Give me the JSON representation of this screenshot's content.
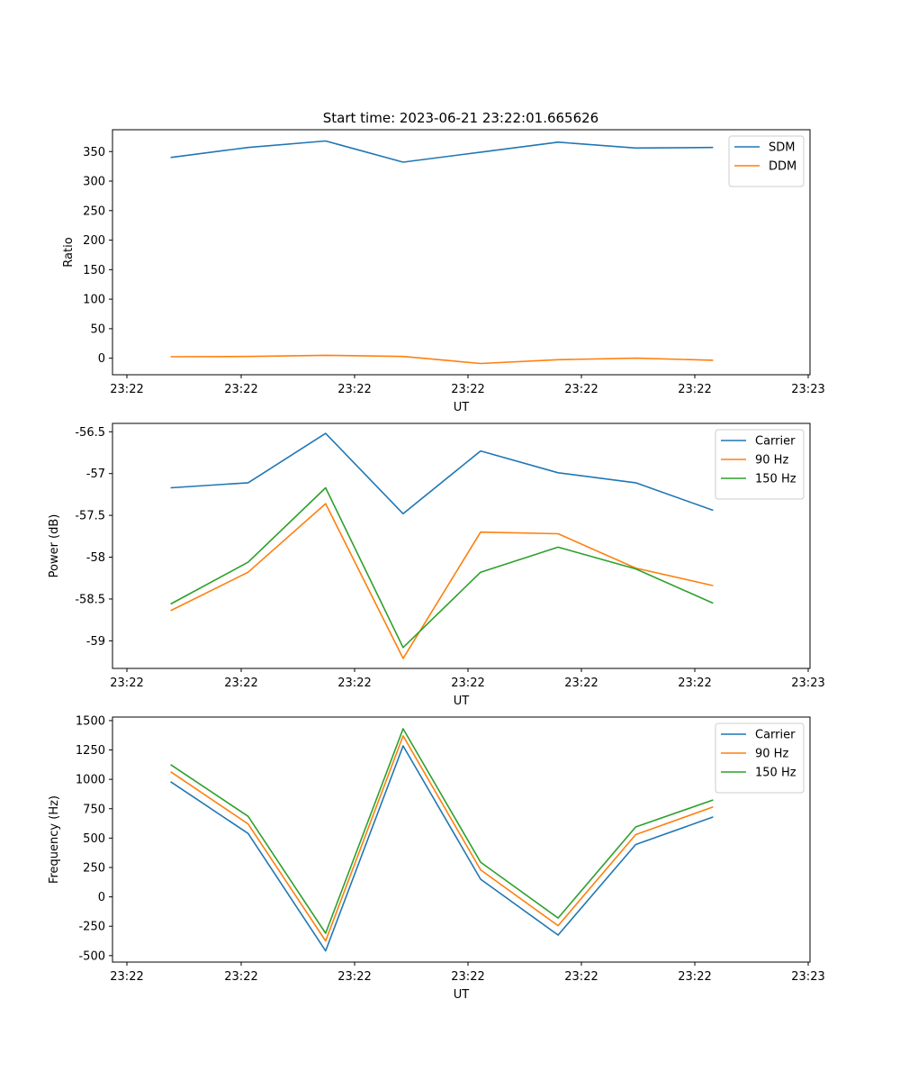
{
  "figure": {
    "title": "Start time: 2023-06-21 23:22:01.665626"
  },
  "chart_data": [
    {
      "type": "line",
      "title": "Start time: 2023-06-21 23:22:01.665626",
      "xlabel": "UT",
      "ylabel": "Ratio",
      "x_tick_labels": [
        "23:22",
        "23:22",
        "23:22",
        "23:22",
        "23:22",
        "23:22",
        "23:23"
      ],
      "x": [
        1,
        2,
        3,
        4,
        5,
        6,
        7,
        8
      ],
      "xlim": [
        0.25,
        9.25
      ],
      "ylim": [
        -28,
        387
      ],
      "y_ticks": [
        0,
        50,
        100,
        150,
        200,
        250,
        300,
        350
      ],
      "legend": "top-right",
      "series": [
        {
          "name": "SDM",
          "color": "#1f77b4",
          "values": [
            340,
            357,
            368,
            332,
            349,
            366,
            356,
            357
          ]
        },
        {
          "name": "DDM",
          "color": "#ff7f0e",
          "values": [
            2.5,
            3.0,
            5.0,
            3.0,
            -9.0,
            -2.5,
            0.0,
            -3.5
          ]
        }
      ]
    },
    {
      "type": "line",
      "xlabel": "UT",
      "ylabel": "Power (dB)",
      "x_tick_labels": [
        "23:22",
        "23:22",
        "23:22",
        "23:22",
        "23:22",
        "23:22",
        "23:23"
      ],
      "x": [
        1,
        2,
        3,
        4,
        5,
        6,
        7,
        8
      ],
      "xlim": [
        0.25,
        9.25
      ],
      "ylim": [
        -59.33,
        -56.4
      ],
      "y_ticks": [
        -59.0,
        -58.5,
        -58.0,
        -57.5,
        -57.0,
        -56.5
      ],
      "legend": "top-right",
      "series": [
        {
          "name": "Carrier",
          "color": "#1f77b4",
          "values": [
            -57.17,
            -57.11,
            -56.52,
            -57.48,
            -56.73,
            -56.99,
            -57.11,
            -57.44
          ]
        },
        {
          "name": "90 Hz",
          "color": "#ff7f0e",
          "values": [
            -58.64,
            -58.18,
            -57.36,
            -59.21,
            -57.7,
            -57.72,
            -58.13,
            -58.34
          ]
        },
        {
          "name": "150 Hz",
          "color": "#2ca02c",
          "values": [
            -58.56,
            -58.06,
            -57.17,
            -59.08,
            -58.18,
            -57.88,
            -58.14,
            -58.55
          ]
        }
      ]
    },
    {
      "type": "line",
      "xlabel": "UT",
      "ylabel": "Frequency (Hz)",
      "x_tick_labels": [
        "23:22",
        "23:22",
        "23:22",
        "23:22",
        "23:22",
        "23:22",
        "23:23"
      ],
      "x": [
        1,
        2,
        3,
        4,
        5,
        6,
        7,
        8
      ],
      "xlim": [
        0.25,
        9.25
      ],
      "ylim": [
        -555,
        1530
      ],
      "y_ticks": [
        -500,
        -250,
        0,
        250,
        500,
        750,
        1000,
        1250,
        1500
      ],
      "legend": "top-right",
      "series": [
        {
          "name": "Carrier",
          "color": "#1f77b4",
          "values": [
            980,
            540,
            -460,
            1285,
            150,
            -325,
            445,
            680
          ]
        },
        {
          "name": "90 Hz",
          "color": "#ff7f0e",
          "values": [
            1065,
            620,
            -375,
            1370,
            230,
            -245,
            530,
            765
          ]
        },
        {
          "name": "150 Hz",
          "color": "#2ca02c",
          "values": [
            1125,
            685,
            -310,
            1430,
            295,
            -180,
            595,
            825
          ]
        }
      ]
    }
  ]
}
